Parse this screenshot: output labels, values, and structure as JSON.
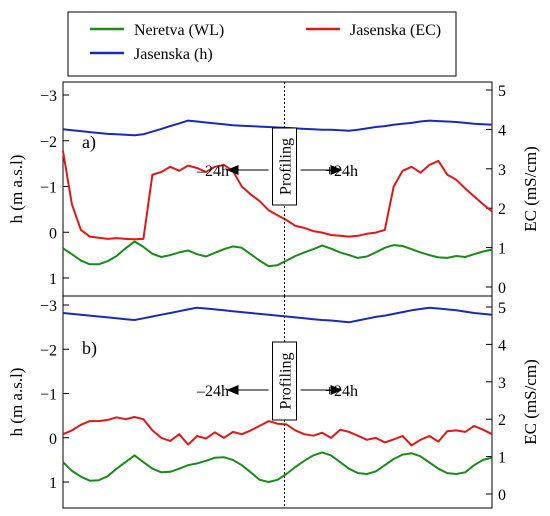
{
  "chart_data": [
    {
      "type": "line",
      "panel_label": "a)",
      "x": [
        0,
        1,
        2,
        3,
        4,
        5,
        6,
        7,
        8,
        9,
        10,
        11,
        12,
        13,
        14,
        15,
        16,
        17,
        18,
        19,
        20,
        21,
        22,
        23,
        24,
        25,
        26,
        27,
        28,
        29,
        30,
        31,
        32,
        33,
        34,
        35,
        36,
        37,
        38,
        39,
        40,
        41,
        42,
        43,
        44,
        45,
        46,
        47,
        48
      ],
      "xlim": [
        0,
        48
      ],
      "ylabel_left": "h (m a.s.l)",
      "ylim_left": [
        -3.4,
        1.1
      ],
      "yticks_left": [
        -3,
        -2,
        -1,
        0,
        1
      ],
      "ylabel_right": "EC (mS/cm)",
      "ylim_right": [
        0,
        5
      ],
      "yticks_right": [
        0,
        1,
        2,
        3,
        4,
        5
      ],
      "series": [
        {
          "name": "Neretva (WL)",
          "axis": "left",
          "color": "#1a8a1a",
          "values": [
            0.35,
            0.48,
            0.62,
            0.7,
            0.7,
            0.63,
            0.52,
            0.35,
            0.2,
            0.32,
            0.47,
            0.54,
            0.5,
            0.44,
            0.4,
            0.48,
            0.53,
            0.45,
            0.37,
            0.31,
            0.34,
            0.48,
            0.62,
            0.74,
            0.72,
            0.62,
            0.52,
            0.44,
            0.37,
            0.29,
            0.36,
            0.44,
            0.5,
            0.56,
            0.53,
            0.44,
            0.34,
            0.28,
            0.3,
            0.37,
            0.44,
            0.5,
            0.55,
            0.56,
            0.52,
            0.54,
            0.48,
            0.42,
            0.38
          ]
        },
        {
          "name": "Jasenska (h)",
          "axis": "left",
          "color": "#1a2ab8",
          "values": [
            -2.25,
            -2.23,
            -2.21,
            -2.19,
            -2.17,
            -2.15,
            -2.14,
            -2.13,
            -2.12,
            -2.14,
            -2.2,
            -2.26,
            -2.32,
            -2.38,
            -2.44,
            -2.42,
            -2.4,
            -2.38,
            -2.36,
            -2.34,
            -2.33,
            -2.32,
            -2.31,
            -2.3,
            -2.29,
            -2.28,
            -2.27,
            -2.26,
            -2.25,
            -2.24,
            -2.24,
            -2.23,
            -2.22,
            -2.24,
            -2.27,
            -2.3,
            -2.32,
            -2.35,
            -2.37,
            -2.39,
            -2.42,
            -2.44,
            -2.43,
            -2.42,
            -2.41,
            -2.39,
            -2.37,
            -2.36,
            -2.35
          ]
        },
        {
          "name": "Jasenska (EC)",
          "axis": "right",
          "color": "#e01818",
          "values": [
            3.45,
            2.1,
            1.45,
            1.28,
            1.25,
            1.22,
            1.24,
            1.22,
            1.21,
            1.22,
            2.85,
            2.92,
            3.05,
            2.95,
            3.08,
            3.02,
            2.92,
            3.05,
            3.1,
            2.95,
            2.55,
            2.35,
            2.18,
            1.95,
            1.82,
            1.7,
            1.55,
            1.5,
            1.42,
            1.38,
            1.32,
            1.3,
            1.28,
            1.3,
            1.35,
            1.38,
            1.45,
            2.55,
            2.95,
            3.05,
            2.9,
            3.1,
            3.2,
            2.85,
            2.72,
            2.5,
            2.3,
            2.1,
            1.92
          ]
        }
      ],
      "annotation": {
        "center": "Profiling",
        "left": "–24h",
        "right": "+24h"
      }
    },
    {
      "type": "line",
      "panel_label": "b)",
      "x": [
        0,
        1,
        2,
        3,
        4,
        5,
        6,
        7,
        8,
        9,
        10,
        11,
        12,
        13,
        14,
        15,
        16,
        17,
        18,
        19,
        20,
        21,
        22,
        23,
        24,
        25,
        26,
        27,
        28,
        29,
        30,
        31,
        32,
        33,
        34,
        35,
        36,
        37,
        38,
        39,
        40,
        41,
        42,
        43,
        44,
        45,
        46,
        47,
        48
      ],
      "xlim": [
        0,
        48
      ],
      "ylabel_left": "h (m a.s.l)",
      "ylim_left": [
        -3.3,
        1.25
      ],
      "yticks_left": [
        -3,
        -2,
        -1,
        0,
        1
      ],
      "ylabel_right": "EC (mS/cm)",
      "ylim_right": [
        0,
        5.3
      ],
      "yticks_right": [
        0,
        1,
        2,
        3,
        4,
        5
      ],
      "series": [
        {
          "name": "Neretva (WL)",
          "axis": "left",
          "color": "#1a8a1a",
          "values": [
            0.55,
            0.75,
            0.88,
            0.97,
            0.96,
            0.87,
            0.7,
            0.55,
            0.4,
            0.55,
            0.7,
            0.78,
            0.77,
            0.7,
            0.62,
            0.58,
            0.52,
            0.45,
            0.44,
            0.5,
            0.62,
            0.78,
            0.95,
            1.0,
            0.95,
            0.82,
            0.66,
            0.52,
            0.4,
            0.33,
            0.4,
            0.55,
            0.7,
            0.8,
            0.82,
            0.76,
            0.62,
            0.48,
            0.38,
            0.35,
            0.42,
            0.56,
            0.7,
            0.8,
            0.82,
            0.78,
            0.62,
            0.5,
            0.45
          ]
        },
        {
          "name": "Jasenska (h)",
          "axis": "left",
          "color": "#1a2ab8",
          "values": [
            -2.82,
            -2.8,
            -2.78,
            -2.76,
            -2.74,
            -2.72,
            -2.7,
            -2.68,
            -2.66,
            -2.7,
            -2.74,
            -2.78,
            -2.82,
            -2.86,
            -2.9,
            -2.94,
            -2.92,
            -2.9,
            -2.88,
            -2.86,
            -2.84,
            -2.82,
            -2.8,
            -2.78,
            -2.76,
            -2.74,
            -2.72,
            -2.7,
            -2.68,
            -2.66,
            -2.65,
            -2.63,
            -2.61,
            -2.65,
            -2.69,
            -2.73,
            -2.76,
            -2.8,
            -2.84,
            -2.88,
            -2.91,
            -2.94,
            -2.92,
            -2.9,
            -2.88,
            -2.85,
            -2.82,
            -2.8,
            -2.78
          ]
        },
        {
          "name": "Jasenska (EC)",
          "axis": "right",
          "color": "#e01818",
          "values": [
            1.6,
            1.7,
            1.85,
            1.95,
            1.95,
            1.98,
            2.05,
            2.0,
            2.06,
            2.0,
            1.7,
            1.5,
            1.42,
            1.6,
            1.32,
            1.55,
            1.48,
            1.65,
            1.5,
            1.66,
            1.6,
            1.7,
            1.82,
            1.95,
            1.88,
            1.86,
            1.7,
            1.6,
            1.56,
            1.64,
            1.5,
            1.72,
            1.66,
            1.56,
            1.45,
            1.5,
            1.38,
            1.46,
            1.55,
            1.3,
            1.45,
            1.55,
            1.4,
            1.68,
            1.7,
            1.66,
            1.82,
            1.72,
            1.6
          ]
        }
      ],
      "annotation": {
        "center": "Profiling",
        "left": "–24h",
        "right": "+24h"
      }
    }
  ],
  "legend": [
    {
      "name": "Neretva (WL)",
      "color": "#1a8a1a"
    },
    {
      "name": "Jasenska (EC)",
      "color": "#e01818"
    },
    {
      "name": "Jasenska (h)",
      "color": "#1a2ab8"
    }
  ]
}
